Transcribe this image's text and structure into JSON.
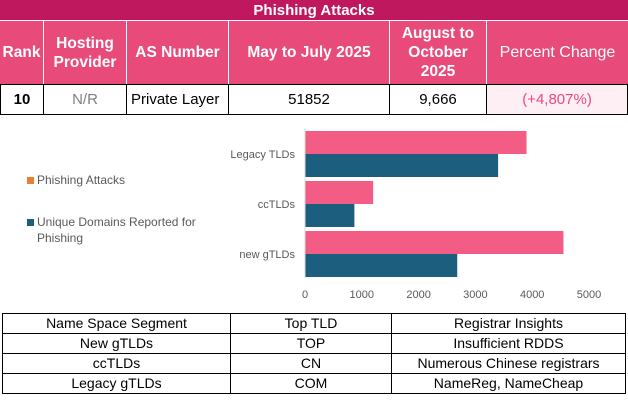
{
  "title": "Phishing Attacks",
  "headers": {
    "rank": "Rank",
    "hosting_provider": "Hosting Provider",
    "as_number": "AS Number",
    "may_july": "May to July 2025",
    "aug_oct": "August to October 2025",
    "percent_change": "Percent Change"
  },
  "row": {
    "rank": "10",
    "hosting_provider": "N/R",
    "as_number": "Private Layer",
    "may_july": "51852",
    "aug_oct": "9,666",
    "percent_change": "(+4,807%)"
  },
  "colors": {
    "title_bg": "#c0185f",
    "header_bg": "#e84b7a",
    "phishing_bar": "#f25c85",
    "domains_bar": "#1b5e7e",
    "legend_phishing": "#ed7d31",
    "percent_change_text": "#e84b7a",
    "percent_change_bg": "#fdeff4"
  },
  "chart_data": {
    "type": "bar",
    "orientation": "horizontal",
    "categories": [
      "Legacy TLDs",
      "ccTLDs",
      "new gTLDs"
    ],
    "series": [
      {
        "name": "Phishing Attacks",
        "values": [
          3900,
          1200,
          4550
        ]
      },
      {
        "name": "Unique Domains Reported for Phishing",
        "values": [
          3400,
          870,
          2680
        ]
      }
    ],
    "xlim": [
      0,
      5000
    ],
    "x_ticks": [
      "0",
      "1000",
      "2000",
      "3000",
      "4000",
      "5000"
    ],
    "legend_position": "left",
    "grid": false
  },
  "bottom_table": {
    "headers": [
      "Name Space Segment",
      "Top TLD",
      "Registrar Insights"
    ],
    "rows": [
      [
        "New gTLDs",
        "TOP",
        "Insufficient RDDS"
      ],
      [
        "ccTLDs",
        "CN",
        "Numerous Chinese registrars"
      ],
      [
        "Legacy gTLDs",
        "COM",
        "NameReg, NameCheap"
      ]
    ]
  }
}
